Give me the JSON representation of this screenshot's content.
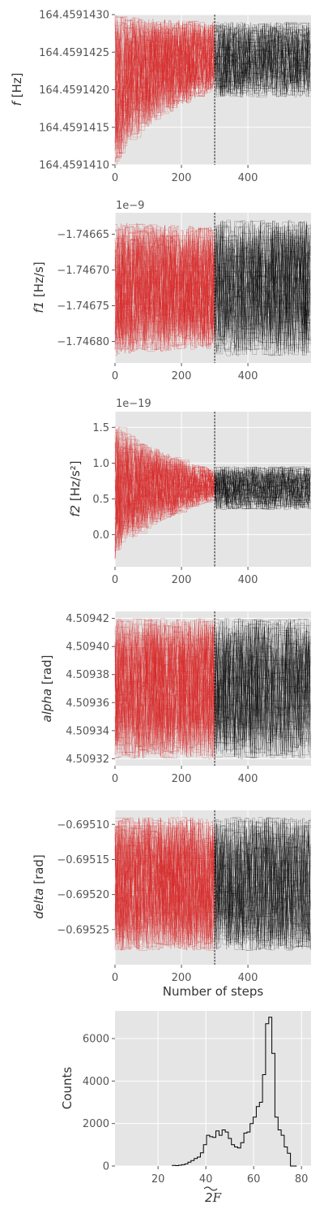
{
  "colors": {
    "burnin": "#d62728",
    "production": "#000000",
    "background": "#e5e5e5",
    "grid": "#ffffff"
  },
  "chart_data": [
    {
      "type": "line",
      "id": "f",
      "ylabel": "f [Hz]",
      "ylabel_italic": "f",
      "ylabel_rest": " [Hz]",
      "offset_text": "",
      "xlim": [
        0,
        590
      ],
      "ylim": [
        164.459141,
        164.459143
      ],
      "x_ticks": [
        0,
        200,
        400
      ],
      "x_tick_labels": [
        "0",
        "200",
        "400"
      ],
      "y_ticks": [
        164.459141,
        164.4591415,
        164.459142,
        164.4591425,
        164.459143
      ],
      "y_tick_labels": [
        "164.4591410",
        "164.4591415",
        "164.4591420",
        "164.4591425",
        "164.4591430"
      ],
      "burnin_steps": 300,
      "walker_band": {
        "burnin": {
          "start": [
            164.459141,
            164.459143
          ],
          "end": [
            164.459142,
            164.4591429
          ]
        },
        "production": [
          164.4591419,
          164.4591429
        ]
      }
    },
    {
      "type": "line",
      "id": "f1",
      "ylabel": "f1 [Hz/s]",
      "ylabel_italic": "f1",
      "ylabel_rest": " [Hz/s]",
      "offset_text": "1e−9",
      "xlim": [
        0,
        590
      ],
      "ylim": [
        -1.74683,
        -1.74662
      ],
      "x_ticks": [
        0,
        200,
        400
      ],
      "x_tick_labels": [
        "0",
        "200",
        "400"
      ],
      "y_ticks": [
        -1.7468,
        -1.74675,
        -1.7467,
        -1.74665
      ],
      "y_tick_labels": [
        "−1.74680",
        "−1.74675",
        "−1.74670",
        "−1.74665"
      ],
      "burnin_steps": 300,
      "walker_band": {
        "burnin": {
          "start": [
            -1.74682,
            -1.74663
          ],
          "end": [
            -1.74681,
            -1.74664
          ]
        },
        "production": [
          -1.74682,
          -1.74663
        ]
      }
    },
    {
      "type": "line",
      "id": "f2",
      "ylabel": "f2 [Hz/s²]",
      "ylabel_italic": "f2",
      "ylabel_rest": " [Hz/s²]",
      "offset_text": "1e−19",
      "xlim": [
        0,
        590
      ],
      "ylim": [
        -0.45,
        1.72
      ],
      "x_ticks": [
        0,
        200,
        400
      ],
      "x_tick_labels": [
        "0",
        "200",
        "400"
      ],
      "y_ticks": [
        0.0,
        0.5,
        1.0,
        1.5
      ],
      "y_tick_labels": [
        "0.0",
        "0.5",
        "1.0",
        "1.5"
      ],
      "burnin_steps": 300,
      "walker_band": {
        "burnin": {
          "start": [
            -0.35,
            1.62
          ],
          "end": [
            0.5,
            0.9
          ]
        },
        "production": [
          0.35,
          0.95
        ]
      }
    },
    {
      "type": "line",
      "id": "alpha",
      "ylabel": "alpha [rad]",
      "ylabel_italic": "alpha",
      "ylabel_rest": " [rad]",
      "offset_text": "",
      "xlim": [
        0,
        590
      ],
      "ylim": [
        4.509315,
        4.509425
      ],
      "x_ticks": [
        0,
        200,
        400
      ],
      "x_tick_labels": [
        "0",
        "200",
        "400"
      ],
      "y_ticks": [
        4.50932,
        4.50934,
        4.50936,
        4.50938,
        4.5094,
        4.50942
      ],
      "y_tick_labels": [
        "4.50932",
        "4.50934",
        "4.50936",
        "4.50938",
        "4.50940",
        "4.50942"
      ],
      "burnin_steps": 300,
      "walker_band": {
        "burnin": {
          "start": [
            4.50932,
            4.50942
          ],
          "end": [
            4.50932,
            4.50942
          ]
        },
        "production": [
          4.50932,
          4.50942
        ]
      }
    },
    {
      "type": "line",
      "id": "delta",
      "ylabel": "delta [rad]",
      "ylabel_italic": "delta",
      "ylabel_rest": " [rad]",
      "offset_text": "",
      "xlim": [
        0,
        590
      ],
      "ylim": [
        -0.6953,
        -0.69508
      ],
      "x_ticks": [
        0,
        200,
        400
      ],
      "x_tick_labels": [
        "0",
        "200",
        "400"
      ],
      "y_ticks": [
        -0.69525,
        -0.6952,
        -0.69515,
        -0.6951
      ],
      "y_tick_labels": [
        "−0.69525",
        "−0.69520",
        "−0.69515",
        "−0.69510"
      ],
      "xlabel": "Number of steps",
      "burnin_steps": 300,
      "walker_band": {
        "burnin": {
          "start": [
            -0.69528,
            -0.69509
          ],
          "end": [
            -0.69528,
            -0.69509
          ]
        },
        "production": [
          -0.69528,
          -0.69509
        ]
      }
    },
    {
      "type": "bar",
      "id": "hist",
      "ylabel": "Counts",
      "xlabel": "2F (widetilde)",
      "xlim": [
        2,
        84
      ],
      "ylim": [
        0,
        7300
      ],
      "x_ticks": [
        20,
        40,
        60,
        80
      ],
      "x_tick_labels": [
        "20",
        "40",
        "60",
        "80"
      ],
      "y_ticks": [
        0,
        2000,
        4000,
        6000
      ],
      "y_tick_labels": [
        "0",
        "2000",
        "4000",
        "6000"
      ],
      "bin_edges": [
        26,
        27.3,
        28.6,
        29.9,
        31.2,
        32.5,
        33.8,
        35.1,
        36.4,
        37.7,
        39,
        40.3,
        41.6,
        42.9,
        44.2,
        45.5,
        46.8,
        48.1,
        49.4,
        50.7,
        52,
        53.3,
        54.6,
        55.9,
        57.2,
        58.5,
        59.8,
        61.1,
        62.4,
        63.7,
        65,
        66.3,
        67.6,
        68.9,
        70.2,
        71.5,
        72.8,
        74.1,
        75.4,
        76.7,
        78
      ],
      "counts": [
        30,
        20,
        40,
        60,
        100,
        180,
        260,
        350,
        420,
        620,
        1000,
        1450,
        1380,
        1350,
        1650,
        1450,
        1700,
        1600,
        1300,
        1000,
        900,
        850,
        1100,
        1550,
        1600,
        2000,
        2300,
        2800,
        3000,
        4300,
        6700,
        7000,
        5300,
        2300,
        1700,
        1450,
        900,
        600,
        0,
        0
      ]
    }
  ]
}
